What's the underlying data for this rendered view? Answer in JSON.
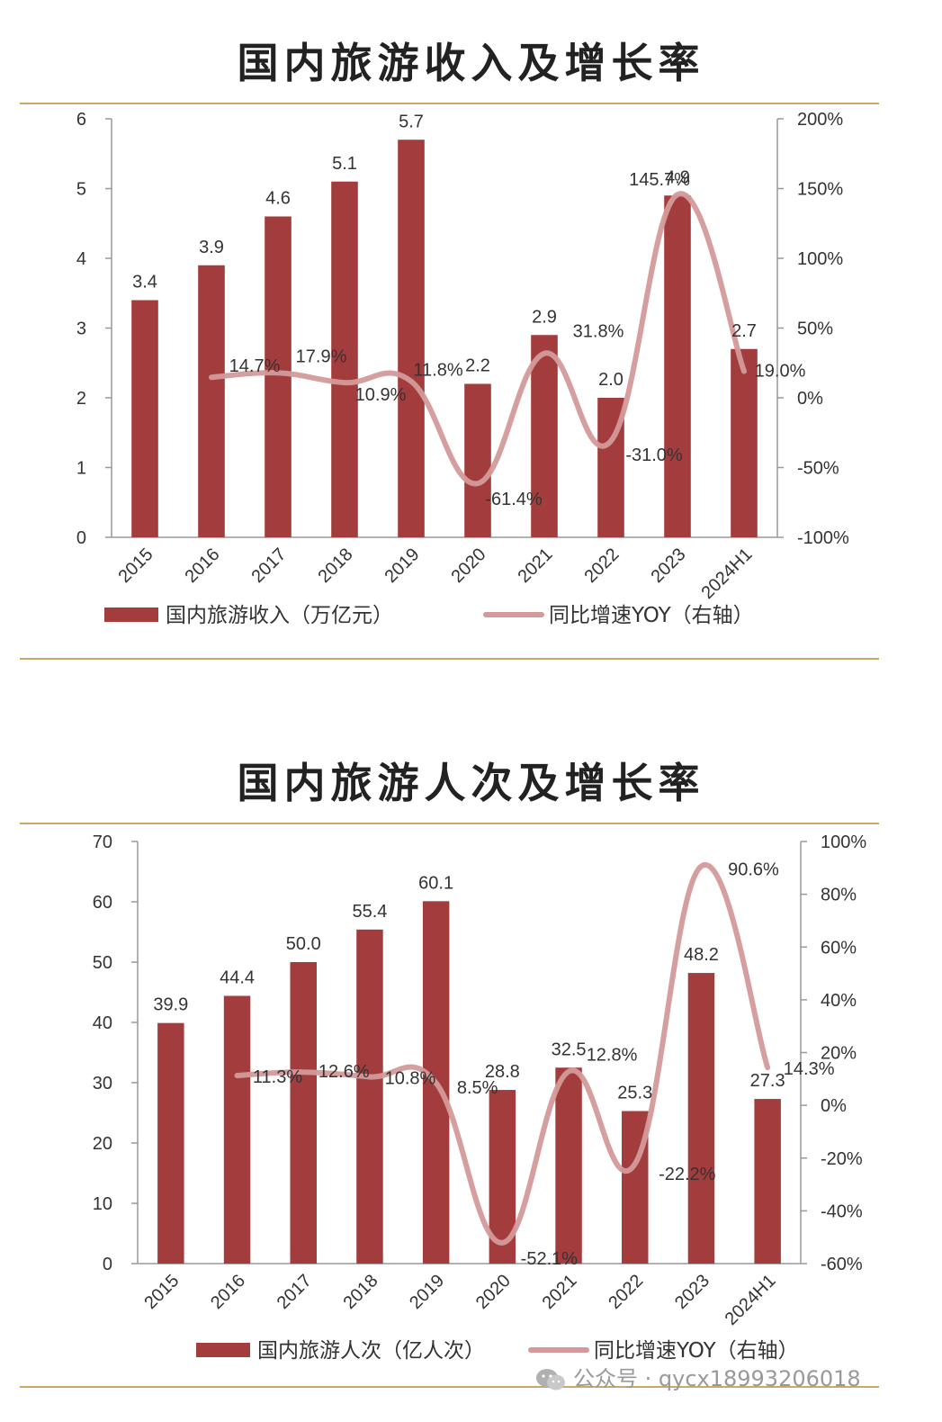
{
  "charts": [
    {
      "title": "国内旅游收入及增长率",
      "chart_data": {
        "type": "bar",
        "categories": [
          "2015",
          "2016",
          "2017",
          "2018",
          "2019",
          "2020",
          "2021",
          "2022",
          "2023",
          "2024H1"
        ],
        "series": [
          {
            "name": "国内旅游收入（万亿元）",
            "type": "bar",
            "axis": "left",
            "values": [
              3.4,
              3.9,
              4.6,
              5.1,
              5.7,
              2.2,
              2.9,
              2.0,
              4.9,
              2.7
            ],
            "labels": [
              "3.4",
              "3.9",
              "4.6",
              "5.1",
              "5.7",
              "2.2",
              "2.9",
              "2.0",
              "4.9",
              "2.7"
            ]
          },
          {
            "name": "同比增速YOY（右轴）",
            "type": "line",
            "axis": "right",
            "values": [
              null,
              14.7,
              17.9,
              10.9,
              11.8,
              -61.4,
              31.8,
              -31.0,
              145.7,
              19.0
            ],
            "labels": [
              "",
              "14.7%",
              "17.9%",
              "10.9%",
              "11.8%",
              "-61.4%",
              "31.8%",
              "-31.0%",
              "145.7%",
              "19.0%"
            ]
          }
        ],
        "y_left": {
          "min": 0,
          "max": 6,
          "ticks": [
            "0",
            "1",
            "2",
            "3",
            "4",
            "5",
            "6"
          ]
        },
        "y_right": {
          "min": -100,
          "max": 200,
          "ticks": [
            "-100%",
            "-50%",
            "0%",
            "50%",
            "100%",
            "150%",
            "200%"
          ]
        },
        "legend_position": "bottom",
        "grid": false
      }
    },
    {
      "title": "国内旅游人次及增长率",
      "chart_data": {
        "type": "bar",
        "categories": [
          "2015",
          "2016",
          "2017",
          "2018",
          "2019",
          "2020",
          "2021",
          "2022",
          "2023",
          "2024H1"
        ],
        "series": [
          {
            "name": "国内旅游人次（亿人次）",
            "type": "bar",
            "axis": "left",
            "values": [
              39.9,
              44.4,
              50.0,
              55.4,
              60.1,
              28.8,
              32.5,
              25.3,
              48.2,
              27.3
            ],
            "labels": [
              "39.9",
              "44.4",
              "50.0",
              "55.4",
              "60.1",
              "28.8",
              "32.5",
              "25.3",
              "48.2",
              "27.3"
            ]
          },
          {
            "name": "同比增速YOY（右轴）",
            "type": "line",
            "axis": "right",
            "values": [
              null,
              11.3,
              12.6,
              10.8,
              8.5,
              -52.1,
              12.8,
              -22.2,
              90.6,
              14.3
            ],
            "labels": [
              "",
              "11.3%",
              "12.6%",
              "10.8%",
              "8.5%",
              "-52.1%",
              "12.8%",
              "-22.2%",
              "90.6%",
              "14.3%"
            ]
          }
        ],
        "y_left": {
          "min": 0,
          "max": 70,
          "ticks": [
            "0",
            "10",
            "20",
            "30",
            "40",
            "50",
            "60",
            "70"
          ]
        },
        "y_right": {
          "min": -60,
          "max": 100,
          "ticks": [
            "-60%",
            "-40%",
            "-20%",
            "0%",
            "20%",
            "40%",
            "60%",
            "80%",
            "100%"
          ]
        },
        "legend_position": "bottom",
        "grid": false
      }
    }
  ],
  "colors": {
    "bar": "#a33c3c",
    "line": "#d49a9a",
    "rule": "#c9a86a",
    "axis": "#999999"
  },
  "watermark": {
    "icon": "wechat-icon",
    "text": "公众号 · qycx18993206018"
  }
}
